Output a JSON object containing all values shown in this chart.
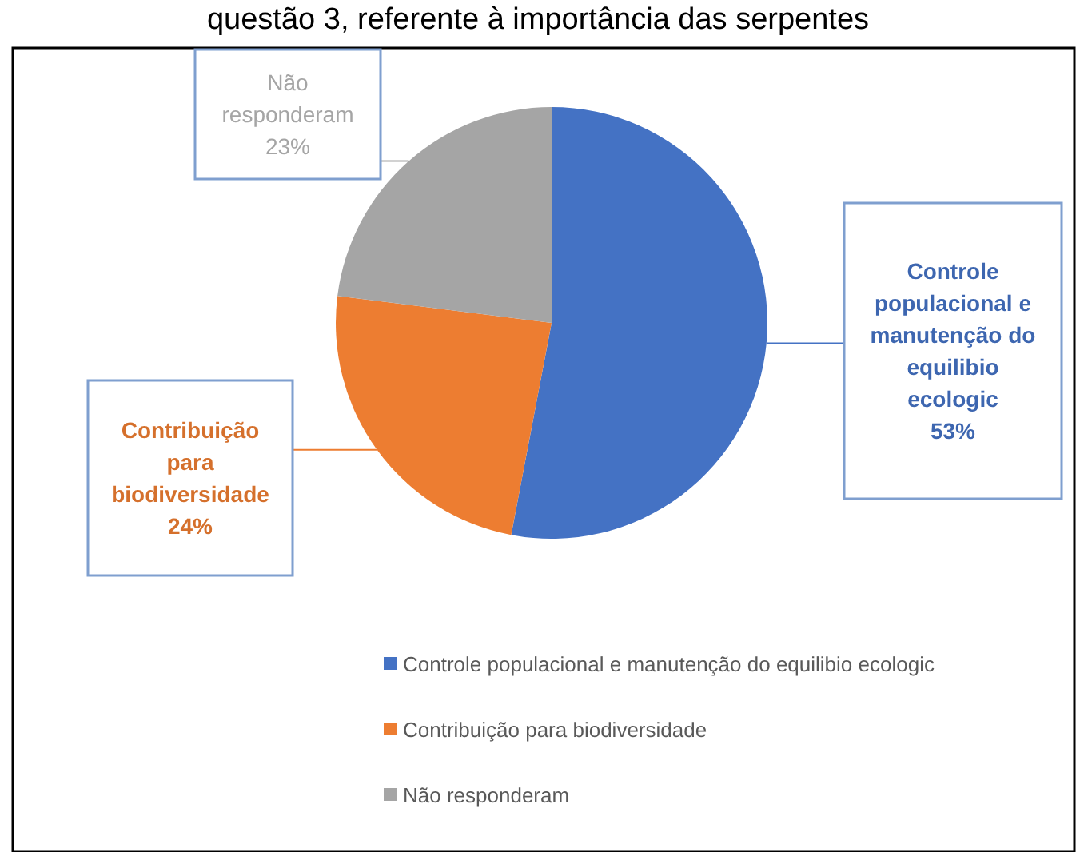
{
  "chart_data": {
    "type": "pie",
    "title": "questão 3, referente à importância das serpentes",
    "categories": [
      "Controle populacional e manutenção do equilibio ecologic",
      "Contribuição para biodiversidade",
      "Não responderam"
    ],
    "values": [
      53,
      24,
      23
    ],
    "colors": [
      "#4472c4",
      "#ed7d31",
      "#a5a5a5"
    ],
    "value_labels": [
      "53%",
      "24%",
      "23%"
    ],
    "legend": "bottom"
  }
}
